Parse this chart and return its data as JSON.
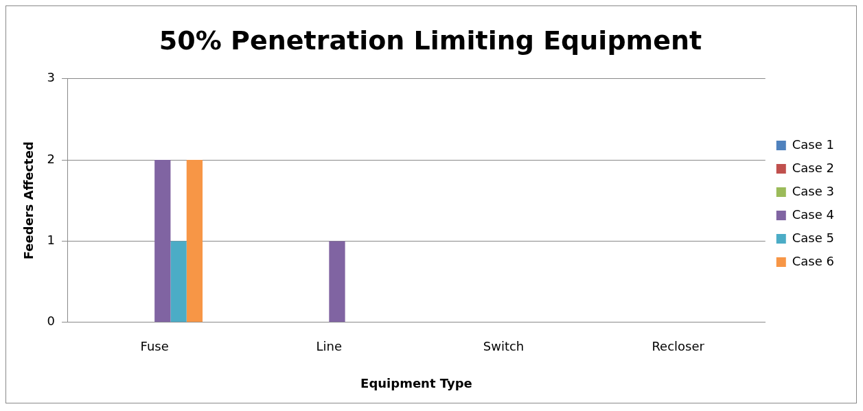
{
  "chart_data": {
    "type": "bar",
    "title": "50% Penetration Limiting Equipment",
    "xlabel": "Equipment Type",
    "ylabel": "Feeders Affected",
    "categories": [
      "Fuse",
      "Line",
      "Switch",
      "Recloser"
    ],
    "series": [
      {
        "name": "Case 1",
        "color": "#4f81bd",
        "values": [
          0,
          0,
          0,
          0
        ]
      },
      {
        "name": "Case 2",
        "color": "#c0504d",
        "values": [
          0,
          0,
          0,
          0
        ]
      },
      {
        "name": "Case 3",
        "color": "#9bbb59",
        "values": [
          0,
          0,
          0,
          0
        ]
      },
      {
        "name": "Case 4",
        "color": "#8064a2",
        "values": [
          2,
          1,
          0,
          0
        ]
      },
      {
        "name": "Case 5",
        "color": "#4bacc6",
        "values": [
          1,
          0,
          0,
          0
        ]
      },
      {
        "name": "Case 6",
        "color": "#f79646",
        "values": [
          2,
          0,
          0,
          0
        ]
      }
    ],
    "ylim": [
      0,
      3
    ],
    "yticks": [
      0,
      1,
      2,
      3
    ],
    "grid": "y",
    "legend": "right"
  }
}
